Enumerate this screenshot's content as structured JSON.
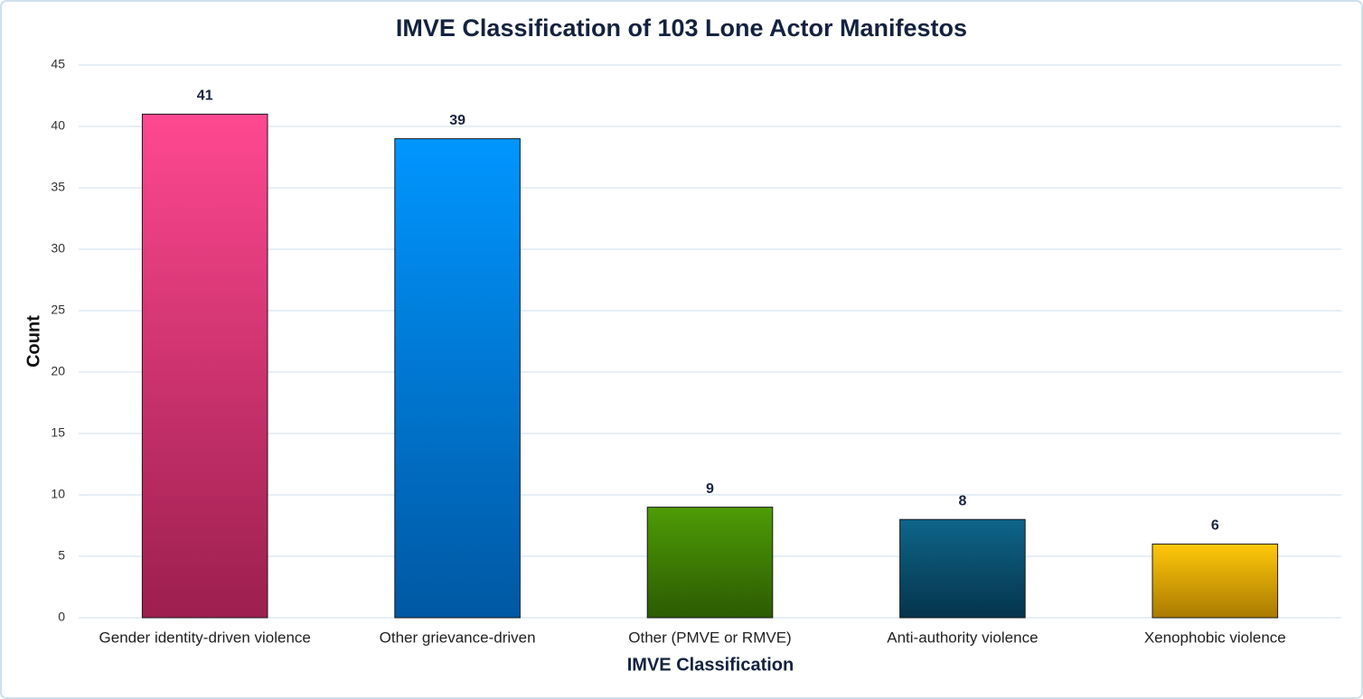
{
  "chart_data": {
    "type": "bar",
    "title": "IMVE Classification of 103 Lone Actor Manifestos",
    "xlabel": "IMVE Classification",
    "ylabel": "Count",
    "categories": [
      "Gender identity-driven violence",
      "Other grievance-driven",
      "Other (PMVE or RMVE)",
      "Anti-authority violence",
      "Xenophobic violence"
    ],
    "values": [
      41,
      39,
      9,
      8,
      6
    ],
    "colors": [
      [
        "#ff4891",
        "#9c1f4e"
      ],
      [
        "#0096ff",
        "#0058a3"
      ],
      [
        "#4e9c06",
        "#2c5a02"
      ],
      [
        "#0e6589",
        "#05344c"
      ],
      [
        "#ffc80a",
        "#a97a00"
      ]
    ],
    "ylim": [
      0,
      45
    ],
    "yticks": [
      0,
      5,
      10,
      15,
      20,
      25,
      30,
      35,
      40,
      45
    ],
    "grid": true
  }
}
